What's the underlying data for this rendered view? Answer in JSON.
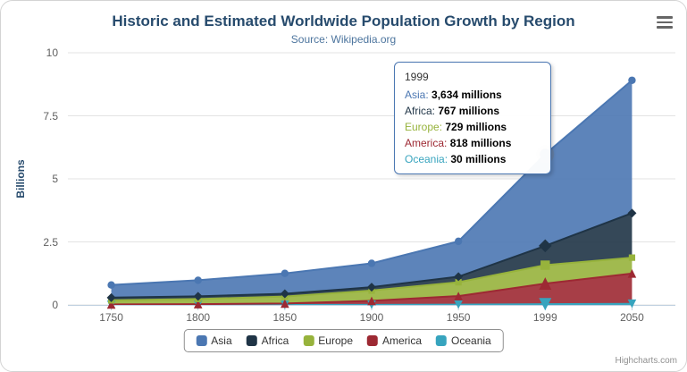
{
  "header": {
    "title": "Historic and Estimated Worldwide Population Growth by Region",
    "subtitle": "Source: Wikipedia.org"
  },
  "context_menu": {
    "icon": "hamburger-menu-icon"
  },
  "credits": {
    "text": "Highcharts.com"
  },
  "tooltip": {
    "visible": true,
    "header": "1999",
    "rows": [
      {
        "name": "Asia",
        "value": "3,634 millions"
      },
      {
        "name": "Africa",
        "value": "767 millions"
      },
      {
        "name": "Europe",
        "value": "729 millions"
      },
      {
        "name": "America",
        "value": "818 millions"
      },
      {
        "name": "Oceania",
        "value": "30 millions"
      }
    ]
  },
  "colors": {
    "title": "#274b6d",
    "subtitle": "#4d759e",
    "axis_label": "#606060",
    "grid": "#e3e3e3",
    "axis_line": "#c0d0e0",
    "tooltip_border": "#4B77B2",
    "legend_border": "#909090",
    "credits": "#909090"
  },
  "chart_data": {
    "type": "area",
    "stacking": "normal",
    "title": "Historic and Estimated Worldwide Population Growth by Region",
    "subtitle": "Source: Wikipedia.org",
    "xlabel": "",
    "ylabel": "Billions",
    "values_unit": "millions",
    "grid": "horizontal",
    "legend_position": "bottom",
    "categories": [
      "1750",
      "1800",
      "1850",
      "1900",
      "1950",
      "1999",
      "2050"
    ],
    "yticks": [
      0,
      2.5,
      5,
      7.5,
      10
    ],
    "ylim": [
      0,
      10
    ],
    "hover_index": 5,
    "series": [
      {
        "name": "Asia",
        "color": "#4B77B2",
        "marker": "circle",
        "values": [
          502,
          635,
          809,
          947,
          1402,
          3634,
          5268
        ]
      },
      {
        "name": "Africa",
        "color": "#1F3446",
        "marker": "diamond",
        "values": [
          106,
          107,
          111,
          133,
          221,
          767,
          1766
        ]
      },
      {
        "name": "Europe",
        "color": "#97B33C",
        "marker": "square",
        "values": [
          163,
          203,
          276,
          408,
          547,
          729,
          628
        ]
      },
      {
        "name": "America",
        "color": "#9D2933",
        "marker": "triangle",
        "values": [
          18,
          31,
          54,
          156,
          339,
          818,
          1201
        ]
      },
      {
        "name": "Oceania",
        "color": "#37A4BE",
        "marker": "triangle-down",
        "values": [
          2,
          2,
          2,
          6,
          13,
          30,
          46
        ]
      }
    ]
  }
}
